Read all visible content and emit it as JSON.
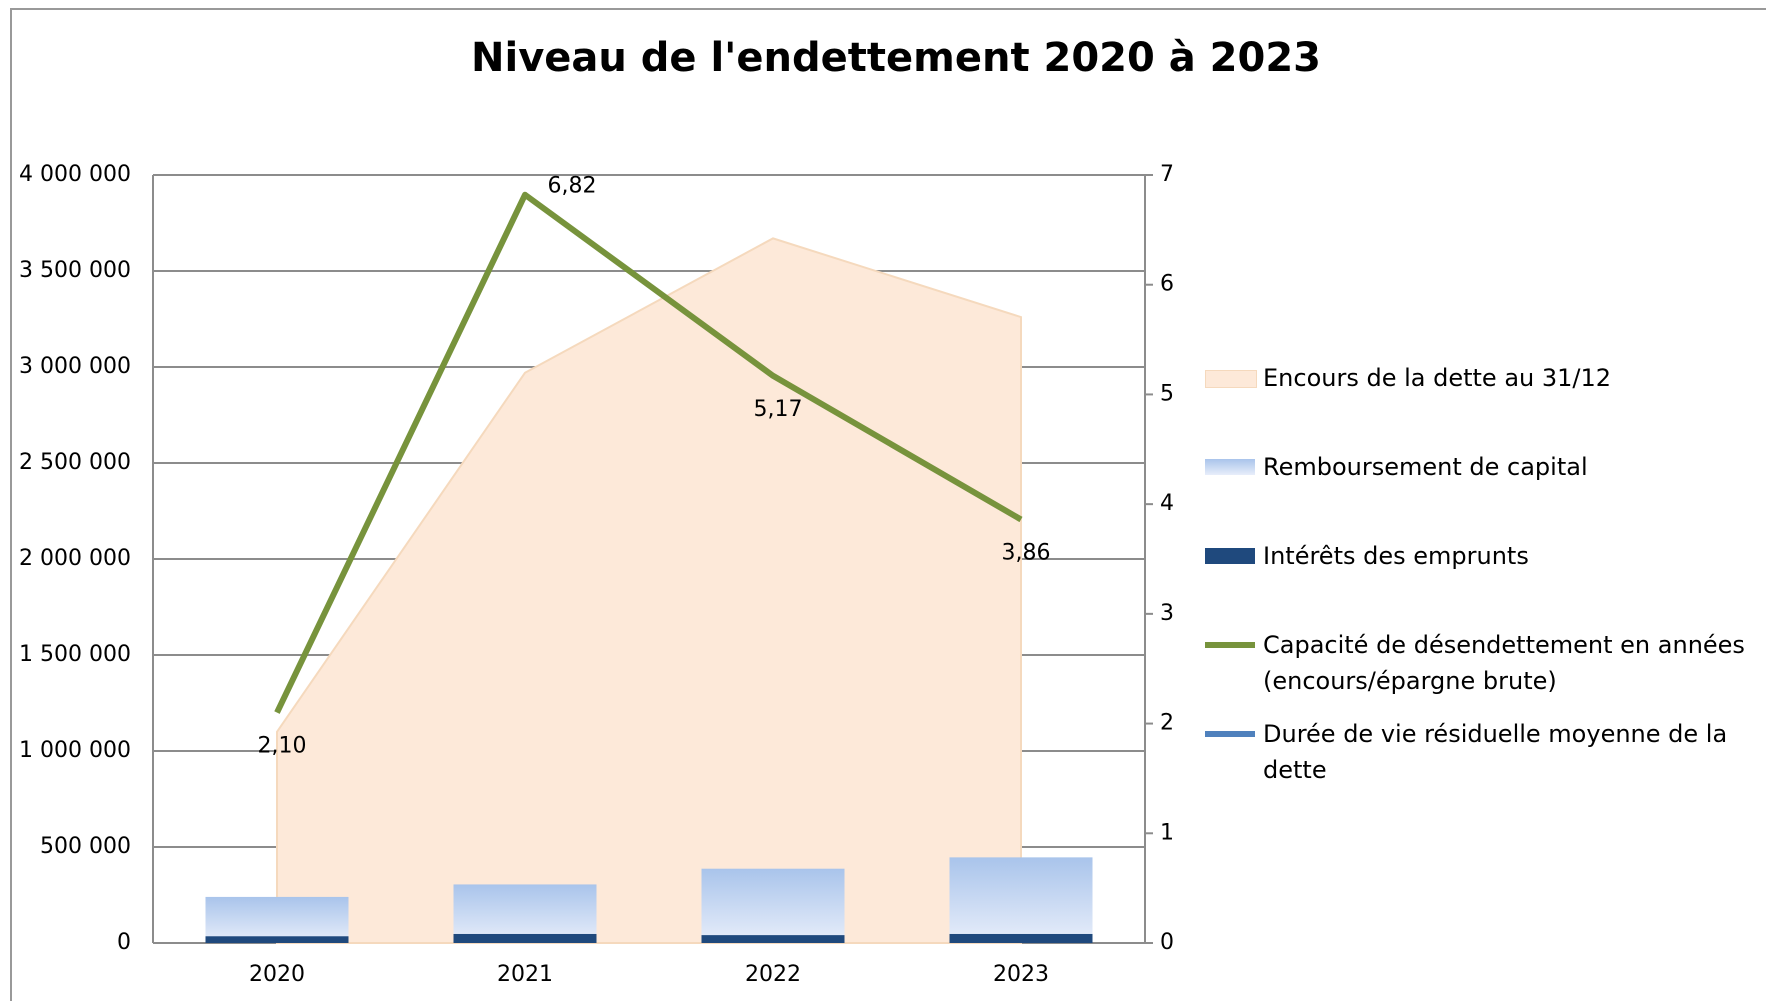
{
  "chart_data": {
    "type": "combo",
    "title": "Niveau de l'endettement 2020 à 2023",
    "categories": [
      "2020",
      "2021",
      "2022",
      "2023"
    ],
    "series": [
      {
        "name": "Encours de la dette au 31/12",
        "type": "area",
        "color": "#fde9d9",
        "values": [
          1100000,
          2970000,
          3670000,
          3260000
        ]
      },
      {
        "name": "Remboursement de capital",
        "type": "bar",
        "color": "#a9c4eb",
        "values": [
          240000,
          305000,
          387000,
          446000
        ]
      },
      {
        "name": "Intérêts des emprunts",
        "type": "bar",
        "color": "#1f497d",
        "values": [
          35000,
          47000,
          41000,
          47000
        ]
      },
      {
        "name": "Capacité de désendettement en années (encours/épargne brute)",
        "type": "line",
        "axis": "y2",
        "color": "#77933c",
        "values": [
          2.1,
          6.82,
          5.17,
          3.86
        ],
        "value_labels": [
          "2,10",
          "6,82",
          "5,17",
          "3,86"
        ]
      },
      {
        "name": "Durée de vie résiduelle moyenne de la dette",
        "type": "line",
        "axis": "y2",
        "color": "#4f81bd",
        "values": [
          null,
          null,
          null,
          null
        ]
      }
    ],
    "ylim": [
      0,
      4000000
    ],
    "yticks": [
      0,
      {
        "value": 500000,
        "label": "500 000"
      },
      {
        "value": 1000000,
        "label": "1 000 000"
      },
      {
        "value": 1500000,
        "label": "1 500 000"
      },
      {
        "value": 2000000,
        "label": "2 000 000"
      },
      {
        "value": 2500000,
        "label": "2 500 000"
      },
      {
        "value": 3000000,
        "label": "3 000 000"
      },
      {
        "value": 3500000,
        "label": "3 500 000"
      },
      {
        "value": 4000000,
        "label": "4 000 000"
      }
    ],
    "y2lim": [
      0,
      7
    ],
    "y2ticks": [
      0,
      1,
      2,
      3,
      4,
      5,
      6,
      7
    ],
    "grid": true,
    "legend": "right"
  }
}
